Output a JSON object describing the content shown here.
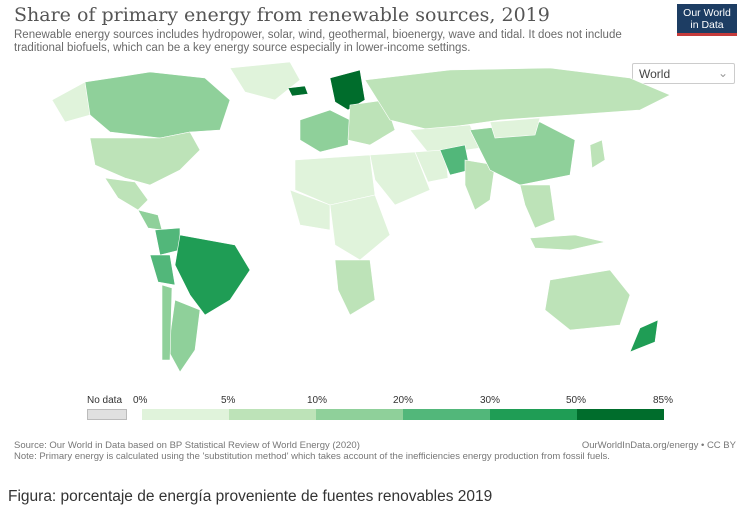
{
  "title": "Share of primary energy from renewable sources, 2019",
  "subtitle": "Renewable energy sources includes hydropower, solar, wind, geothermal, bioenergy, wave and tidal. It does not include traditional biofuels, which can be a key energy source especially in lower-income settings.",
  "logo": {
    "line1": "Our World",
    "line2": "in Data"
  },
  "region_selector": {
    "value": "World"
  },
  "colors": {
    "no_data": "#e0e0e0",
    "bins": [
      "#e0f3db",
      "#bde3b8",
      "#8fd09a",
      "#52b77a",
      "#1f9d55",
      "#006d2c"
    ]
  },
  "legend": {
    "no_data_label": "No data",
    "ticks": [
      "0%",
      "5%",
      "10%",
      "20%",
      "30%",
      "50%",
      "85%"
    ]
  },
  "footer": {
    "source": "Source: Our World in Data based on BP Statistical Review of World Energy (2020)",
    "note": "Note: Primary energy is calculated using the 'substitution method' which takes account of the inefficiencies energy production from fossil fuels.",
    "credit": "OurWorldInData.org/energy • CC BY"
  },
  "caption": "Figura: porcentaje de energía proveniente de fuentes renovables 2019"
}
